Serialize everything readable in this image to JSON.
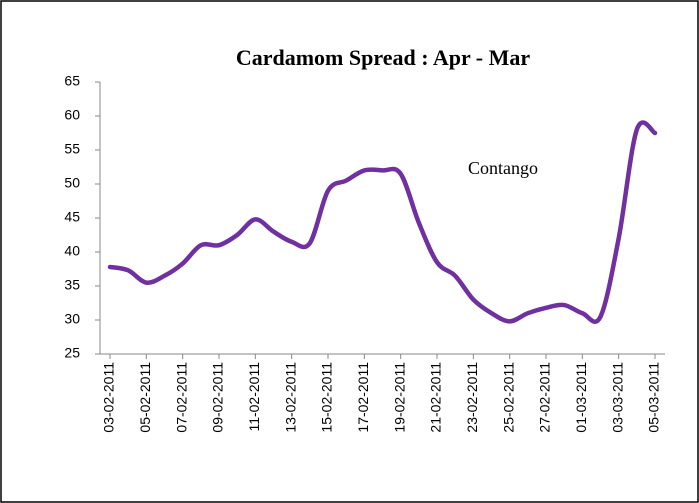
{
  "chart_data": {
    "type": "line",
    "title": "Cardamom Spread : Apr - Mar",
    "annotation": "Contango",
    "categories": [
      "03-02-2011",
      null,
      "05-02-2011",
      null,
      "07-02-2011",
      null,
      "09-02-2011",
      null,
      "11-02-2011",
      null,
      "13-02-2011",
      null,
      "15-02-2011",
      null,
      "17-02-2011",
      null,
      "19-02-2011",
      null,
      "21-02-2011",
      null,
      "23-02-2011",
      null,
      "25-02-2011",
      null,
      "27-02-2011",
      null,
      "01-03-2011",
      null,
      "03-03-2011",
      null,
      "05-03-2011"
    ],
    "series": [
      {
        "name": "Spread",
        "color": "#7030a0",
        "values": [
          37.8,
          37.3,
          35.5,
          36.5,
          38.3,
          41,
          41,
          42.5,
          44.8,
          43,
          41.5,
          41.3,
          49,
          50.5,
          52,
          52,
          51.5,
          44.3,
          38.5,
          36.5,
          33,
          31,
          29.8,
          31,
          31.8,
          32.2,
          31,
          30.5,
          42,
          58,
          57.5
        ]
      }
    ],
    "ylim": [
      25,
      65
    ],
    "yticks": [
      25,
      30,
      35,
      40,
      45,
      50,
      55,
      60,
      65
    ],
    "grid": false
  }
}
